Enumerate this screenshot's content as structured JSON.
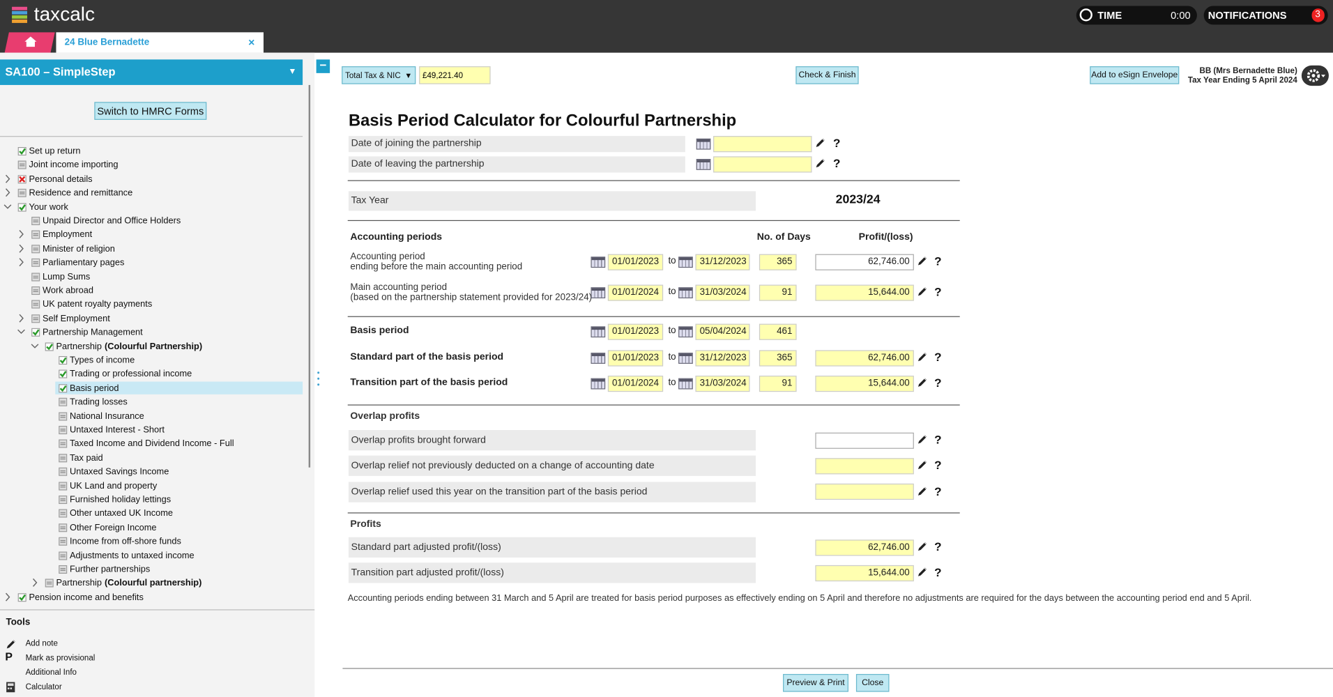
{
  "header": {
    "logo": "taxcalc",
    "time_label": "TIME",
    "time": "0:00",
    "notifications_label": "NOTIFICATIONS",
    "notifications_count": "3"
  },
  "tab": {
    "title": "24 Blue Bernadette",
    "close": "×"
  },
  "sidebar": {
    "title": "SA100 – SimpleStep",
    "menu_arrow": "▼",
    "switch_button": "Switch to HMRC Forms",
    "tree": [
      {
        "label": "Set up return",
        "level": 0,
        "status": "done"
      },
      {
        "label": "Joint income importing",
        "level": 0,
        "status": "pending"
      },
      {
        "label": "Personal details",
        "level": 0,
        "status": "error",
        "expand": "closed"
      },
      {
        "label": "Residence and remittance",
        "level": 0,
        "status": "pending",
        "expand": "closed"
      },
      {
        "label": "Your work",
        "level": 0,
        "status": "done",
        "expand": "open"
      },
      {
        "label": "Unpaid Director and Office Holders",
        "level": 1,
        "status": "pending"
      },
      {
        "label": "Employment",
        "level": 1,
        "status": "pending",
        "expand": "closed"
      },
      {
        "label": "Minister of religion",
        "level": 1,
        "status": "pending",
        "expand": "closed"
      },
      {
        "label": "Parliamentary pages",
        "level": 1,
        "status": "pending",
        "expand": "closed"
      },
      {
        "label": "Lump Sums",
        "level": 1,
        "status": "pending"
      },
      {
        "label": "Work abroad",
        "level": 1,
        "status": "pending"
      },
      {
        "label": "UK patent royalty payments",
        "level": 1,
        "status": "pending"
      },
      {
        "label": "Self Employment",
        "level": 1,
        "status": "pending",
        "expand": "closed"
      },
      {
        "label": "Partnership Management",
        "level": 1,
        "status": "done",
        "expand": "open"
      },
      {
        "label": "Partnership",
        "detail": "(Colourful Partnership)",
        "level": 2,
        "status": "done",
        "expand": "open"
      },
      {
        "label": "Types of income",
        "level": 3,
        "status": "done"
      },
      {
        "label": "Trading or professional income",
        "level": 3,
        "status": "done"
      },
      {
        "label": "Basis period",
        "level": 3,
        "status": "done",
        "selected": true
      },
      {
        "label": "Trading losses",
        "level": 3,
        "status": "pending"
      },
      {
        "label": "National Insurance",
        "level": 3,
        "status": "pending"
      },
      {
        "label": "Untaxed Interest - Short",
        "level": 3,
        "status": "pending"
      },
      {
        "label": "Taxed Income and Dividend Income - Full",
        "level": 3,
        "status": "pending"
      },
      {
        "label": "Tax paid",
        "level": 3,
        "status": "pending"
      },
      {
        "label": "Untaxed Savings Income",
        "level": 3,
        "status": "pending"
      },
      {
        "label": "UK Land and property",
        "level": 3,
        "status": "pending"
      },
      {
        "label": "Furnished holiday lettings",
        "level": 3,
        "status": "pending"
      },
      {
        "label": "Other untaxed UK Income",
        "level": 3,
        "status": "pending"
      },
      {
        "label": "Other Foreign Income",
        "level": 3,
        "status": "pending"
      },
      {
        "label": "Income from off-shore funds",
        "level": 3,
        "status": "pending"
      },
      {
        "label": "Adjustments to untaxed income",
        "level": 3,
        "status": "pending"
      },
      {
        "label": "Further partnerships",
        "level": 3,
        "status": "pending"
      },
      {
        "label": "Partnership",
        "detail": "(Colourful partnership)",
        "level": 2,
        "status": "pending",
        "expand": "closed"
      },
      {
        "label": "Pension income and benefits",
        "level": 0,
        "status": "done",
        "expand": "closed"
      }
    ],
    "tools": {
      "title": "Tools",
      "items": [
        {
          "label": "Add note",
          "icon": "pencil"
        },
        {
          "label": "Mark as provisional",
          "icon_text": "P"
        },
        {
          "label": "Additional Info"
        },
        {
          "label": "Calculator",
          "icon": "calculator"
        }
      ]
    }
  },
  "toolbar": {
    "collapse": "−",
    "total_select": "Total Tax & NIC",
    "select_arrow": "▼",
    "total_value": "£49,221.40",
    "check_finish": "Check & Finish",
    "esign": "Add to eSign Envelope",
    "client": "BB (Mrs Bernadette Blue)",
    "tax_year_end": "Tax Year Ending 5 April 2024"
  },
  "form": {
    "title": "Basis Period Calculator for Colourful Partnership",
    "help": "?",
    "to": "to",
    "dates": [
      {
        "label": "Date of joining the partnership"
      },
      {
        "label": "Date of leaving the partnership"
      }
    ],
    "tax_year_label": "Tax Year",
    "tax_year": "2023/24",
    "accounting_heading": "Accounting periods",
    "days_heading": "No. of Days",
    "profit_heading": "Profit/(loss)",
    "periods": [
      {
        "lines": [
          "Accounting period",
          "ending before the main accounting period"
        ],
        "from": "01/01/2023",
        "to": "31/12/2023",
        "days": 365,
        "profit": "62,746.00",
        "editable": true
      },
      {
        "lines": [
          "Main accounting period",
          "(based on the partnership statement provided for 2023/24)"
        ],
        "from": "01/01/2024",
        "to": "31/03/2024",
        "days": 91,
        "profit": "15,644.00",
        "editable": false
      }
    ],
    "basis": [
      {
        "label": "Basis period",
        "from": "01/01/2023",
        "to": "05/04/2024",
        "days": 461
      },
      {
        "label": "Standard part of the basis period",
        "from": "01/01/2023",
        "to": "31/12/2023",
        "days": 365,
        "profit": "62,746.00"
      },
      {
        "label": "Transition part of the basis period",
        "from": "01/01/2024",
        "to": "31/03/2024",
        "days": 91,
        "profit": "15,644.00"
      }
    ],
    "overlap_heading": "Overlap profits",
    "overlap": [
      {
        "label": "Overlap profits brought forward",
        "editable": true
      },
      {
        "label": "Overlap relief not previously deducted on a change of accounting date",
        "editable": false
      },
      {
        "label": "Overlap relief used this year on the transition part of the basis period",
        "editable": false
      }
    ],
    "profits_heading": "Profits",
    "profits": [
      {
        "label": "Standard part adjusted profit/(loss)",
        "value": "62,746.00"
      },
      {
        "label": "Transition part adjusted profit/(loss)",
        "value": "15,644.00"
      }
    ],
    "note": "Accounting periods ending between 31 March and 5 April are treated for basis period purposes as effectively ending on 5 April and therefore no adjustments are required for the days between the accounting period end and 5 April."
  },
  "footer": {
    "preview": "Preview & Print",
    "close": "Close"
  }
}
